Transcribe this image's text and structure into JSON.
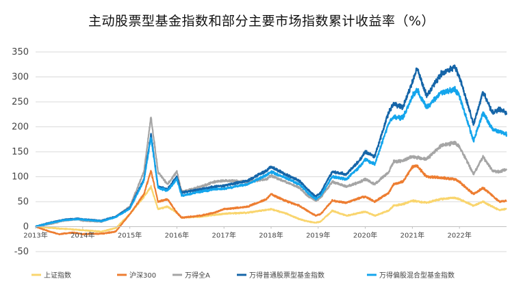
{
  "chart_data": {
    "type": "line",
    "title": "主动股票型基金指数和部分主要市场指数累计收益率（%）",
    "xlabel": "",
    "ylabel": "",
    "ylim": [
      -50,
      350
    ],
    "yticks": [
      -50,
      0,
      50,
      100,
      150,
      200,
      250,
      300,
      350
    ],
    "xlim": [
      2013.0,
      2023.0
    ],
    "xticks": [
      {
        "value": 2013,
        "label": "2013年"
      },
      {
        "value": 2014,
        "label": "2014年"
      },
      {
        "value": 2015,
        "label": "2015年"
      },
      {
        "value": 2016,
        "label": "2016年"
      },
      {
        "value": 2017,
        "label": "2017年"
      },
      {
        "value": 2018,
        "label": "2018年"
      },
      {
        "value": 2019,
        "label": "2019年"
      },
      {
        "value": 2020,
        "label": "2020年"
      },
      {
        "value": 2021,
        "label": "2021年"
      },
      {
        "value": 2022,
        "label": "2022年"
      }
    ],
    "grid": "horizontal",
    "legend_position": "bottom",
    "series": [
      {
        "name": "上证指数",
        "color": "#F9D56E",
        "points": [
          [
            2013.0,
            0
          ],
          [
            2013.4,
            -3
          ],
          [
            2013.7,
            -5
          ],
          [
            2014.0,
            -7
          ],
          [
            2014.4,
            -10
          ],
          [
            2014.7,
            -3
          ],
          [
            2015.0,
            25
          ],
          [
            2015.3,
            60
          ],
          [
            2015.45,
            80
          ],
          [
            2015.6,
            35
          ],
          [
            2015.8,
            40
          ],
          [
            2016.0,
            28
          ],
          [
            2016.1,
            18
          ],
          [
            2016.5,
            20
          ],
          [
            2017.0,
            26
          ],
          [
            2017.5,
            28
          ],
          [
            2018.0,
            35
          ],
          [
            2018.3,
            27
          ],
          [
            2018.6,
            15
          ],
          [
            2018.8,
            10
          ],
          [
            2018.95,
            8
          ],
          [
            2019.05,
            10
          ],
          [
            2019.3,
            32
          ],
          [
            2019.6,
            22
          ],
          [
            2019.9,
            28
          ],
          [
            2020.0,
            30
          ],
          [
            2020.2,
            22
          ],
          [
            2020.5,
            32
          ],
          [
            2020.6,
            42
          ],
          [
            2020.8,
            45
          ],
          [
            2021.0,
            52
          ],
          [
            2021.3,
            48
          ],
          [
            2021.6,
            55
          ],
          [
            2021.9,
            58
          ],
          [
            2022.0,
            55
          ],
          [
            2022.3,
            42
          ],
          [
            2022.5,
            50
          ],
          [
            2022.7,
            40
          ],
          [
            2022.85,
            33
          ],
          [
            2023.0,
            36
          ]
        ]
      },
      {
        "name": "沪深300",
        "color": "#ED7D31",
        "points": [
          [
            2013.0,
            0
          ],
          [
            2013.3,
            -10
          ],
          [
            2013.5,
            -15
          ],
          [
            2013.8,
            -12
          ],
          [
            2014.0,
            -15
          ],
          [
            2014.4,
            -14
          ],
          [
            2014.7,
            -10
          ],
          [
            2015.0,
            25
          ],
          [
            2015.3,
            65
          ],
          [
            2015.45,
            112
          ],
          [
            2015.6,
            50
          ],
          [
            2015.8,
            55
          ],
          [
            2016.0,
            28
          ],
          [
            2016.1,
            18
          ],
          [
            2016.5,
            22
          ],
          [
            2016.8,
            28
          ],
          [
            2017.0,
            35
          ],
          [
            2017.5,
            40
          ],
          [
            2017.9,
            55
          ],
          [
            2018.0,
            65
          ],
          [
            2018.3,
            52
          ],
          [
            2018.6,
            42
          ],
          [
            2018.8,
            30
          ],
          [
            2018.95,
            22
          ],
          [
            2019.05,
            25
          ],
          [
            2019.3,
            52
          ],
          [
            2019.6,
            48
          ],
          [
            2019.9,
            58
          ],
          [
            2020.0,
            60
          ],
          [
            2020.2,
            50
          ],
          [
            2020.5,
            68
          ],
          [
            2020.6,
            85
          ],
          [
            2020.8,
            90
          ],
          [
            2021.0,
            120
          ],
          [
            2021.1,
            122
          ],
          [
            2021.3,
            100
          ],
          [
            2021.6,
            98
          ],
          [
            2021.9,
            95
          ],
          [
            2022.0,
            90
          ],
          [
            2022.3,
            65
          ],
          [
            2022.5,
            78
          ],
          [
            2022.7,
            62
          ],
          [
            2022.85,
            50
          ],
          [
            2023.0,
            52
          ]
        ]
      },
      {
        "name": "万得全A",
        "color": "#A5A5A5",
        "points": [
          [
            2013.0,
            0
          ],
          [
            2013.3,
            5
          ],
          [
            2013.6,
            12
          ],
          [
            2013.9,
            15
          ],
          [
            2014.0,
            12
          ],
          [
            2014.4,
            10
          ],
          [
            2014.7,
            20
          ],
          [
            2015.0,
            40
          ],
          [
            2015.3,
            110
          ],
          [
            2015.45,
            220
          ],
          [
            2015.6,
            110
          ],
          [
            2015.8,
            85
          ],
          [
            2016.0,
            110
          ],
          [
            2016.1,
            70
          ],
          [
            2016.5,
            80
          ],
          [
            2016.8,
            90
          ],
          [
            2017.0,
            92
          ],
          [
            2017.5,
            90
          ],
          [
            2017.9,
            95
          ],
          [
            2018.0,
            102
          ],
          [
            2018.3,
            90
          ],
          [
            2018.6,
            78
          ],
          [
            2018.8,
            60
          ],
          [
            2018.95,
            52
          ],
          [
            2019.05,
            58
          ],
          [
            2019.3,
            90
          ],
          [
            2019.6,
            80
          ],
          [
            2019.9,
            90
          ],
          [
            2020.0,
            95
          ],
          [
            2020.2,
            85
          ],
          [
            2020.5,
            110
          ],
          [
            2020.6,
            130
          ],
          [
            2020.8,
            132
          ],
          [
            2021.0,
            140
          ],
          [
            2021.3,
            135
          ],
          [
            2021.6,
            162
          ],
          [
            2021.9,
            168
          ],
          [
            2022.0,
            160
          ],
          [
            2022.3,
            105
          ],
          [
            2022.5,
            140
          ],
          [
            2022.7,
            112
          ],
          [
            2022.85,
            110
          ],
          [
            2023.0,
            115
          ]
        ]
      },
      {
        "name": "万得普通股票型基金指数",
        "color": "#1565A8",
        "points": [
          [
            2013.0,
            0
          ],
          [
            2013.3,
            8
          ],
          [
            2013.6,
            14
          ],
          [
            2013.9,
            16
          ],
          [
            2014.0,
            15
          ],
          [
            2014.4,
            12
          ],
          [
            2014.7,
            20
          ],
          [
            2015.0,
            38
          ],
          [
            2015.3,
            95
          ],
          [
            2015.45,
            185
          ],
          [
            2015.6,
            80
          ],
          [
            2015.8,
            75
          ],
          [
            2016.0,
            100
          ],
          [
            2016.1,
            68
          ],
          [
            2016.5,
            75
          ],
          [
            2016.8,
            80
          ],
          [
            2017.0,
            82
          ],
          [
            2017.5,
            92
          ],
          [
            2017.9,
            112
          ],
          [
            2018.0,
            120
          ],
          [
            2018.3,
            105
          ],
          [
            2018.6,
            92
          ],
          [
            2018.8,
            72
          ],
          [
            2018.95,
            60
          ],
          [
            2019.05,
            68
          ],
          [
            2019.3,
            110
          ],
          [
            2019.6,
            105
          ],
          [
            2019.9,
            135
          ],
          [
            2020.0,
            150
          ],
          [
            2020.2,
            140
          ],
          [
            2020.5,
            230
          ],
          [
            2020.6,
            245
          ],
          [
            2020.8,
            240
          ],
          [
            2021.0,
            290
          ],
          [
            2021.1,
            318
          ],
          [
            2021.3,
            262
          ],
          [
            2021.6,
            305
          ],
          [
            2021.9,
            320
          ],
          [
            2022.0,
            300
          ],
          [
            2022.3,
            205
          ],
          [
            2022.5,
            270
          ],
          [
            2022.7,
            228
          ],
          [
            2022.85,
            235
          ],
          [
            2023.0,
            228
          ]
        ]
      },
      {
        "name": "万得偏股混合型基金指数",
        "color": "#14A5EC",
        "points": [
          [
            2013.0,
            0
          ],
          [
            2013.3,
            7
          ],
          [
            2013.6,
            13
          ],
          [
            2013.9,
            15
          ],
          [
            2014.0,
            14
          ],
          [
            2014.4,
            11
          ],
          [
            2014.7,
            19
          ],
          [
            2015.0,
            36
          ],
          [
            2015.3,
            92
          ],
          [
            2015.45,
            180
          ],
          [
            2015.6,
            78
          ],
          [
            2015.8,
            72
          ],
          [
            2016.0,
            95
          ],
          [
            2016.1,
            62
          ],
          [
            2016.5,
            70
          ],
          [
            2016.8,
            75
          ],
          [
            2017.0,
            76
          ],
          [
            2017.5,
            85
          ],
          [
            2017.9,
            103
          ],
          [
            2018.0,
            110
          ],
          [
            2018.3,
            98
          ],
          [
            2018.6,
            85
          ],
          [
            2018.8,
            66
          ],
          [
            2018.95,
            55
          ],
          [
            2019.05,
            62
          ],
          [
            2019.3,
            100
          ],
          [
            2019.6,
            95
          ],
          [
            2019.9,
            122
          ],
          [
            2020.0,
            135
          ],
          [
            2020.2,
            125
          ],
          [
            2020.5,
            208
          ],
          [
            2020.6,
            220
          ],
          [
            2020.8,
            218
          ],
          [
            2021.0,
            262
          ],
          [
            2021.1,
            275
          ],
          [
            2021.3,
            238
          ],
          [
            2021.6,
            268
          ],
          [
            2021.9,
            275
          ],
          [
            2022.0,
            262
          ],
          [
            2022.3,
            172
          ],
          [
            2022.5,
            228
          ],
          [
            2022.7,
            195
          ],
          [
            2022.85,
            190
          ],
          [
            2023.0,
            185
          ]
        ]
      }
    ]
  }
}
